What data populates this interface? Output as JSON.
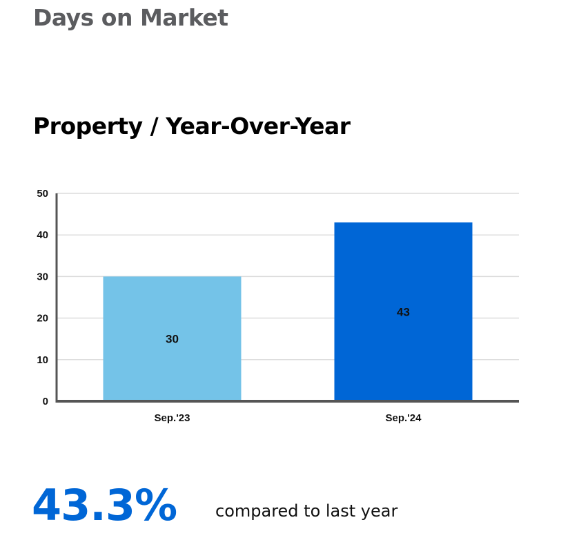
{
  "header": {
    "title": "Days on Market"
  },
  "chart_data": {
    "type": "bar",
    "title": "Property / Year-Over-Year",
    "xlabel": "",
    "ylabel": "",
    "categories": [
      "Sep.'23",
      "Sep.'24"
    ],
    "values": [
      30,
      43
    ],
    "data_labels": [
      "30",
      "43"
    ],
    "colors": [
      "#74c3e8",
      "#0066d6"
    ],
    "ylim": [
      0,
      50
    ],
    "yticks": [
      0,
      10,
      20,
      30,
      40,
      50
    ],
    "grid": true,
    "legend": "none"
  },
  "summary": {
    "change_value": "43.3%",
    "caption": "compared to last year"
  }
}
